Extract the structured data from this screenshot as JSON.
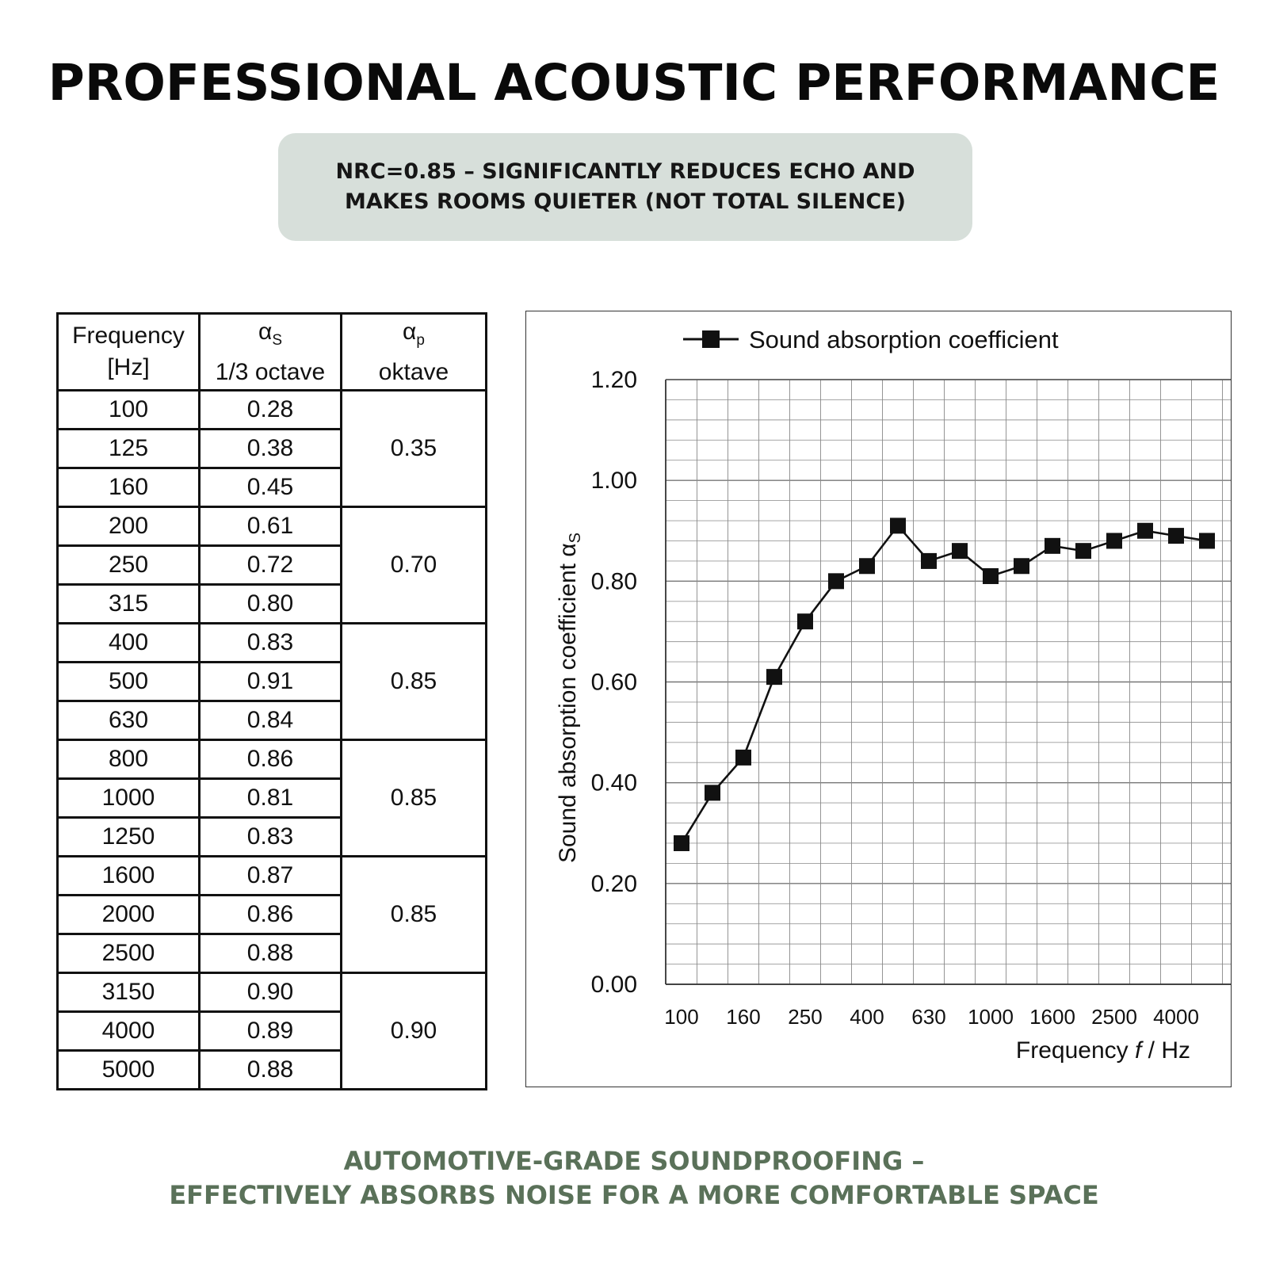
{
  "header": {
    "title": "PROFESSIONAL ACOUSTIC PERFORMANCE",
    "subtitle_line1": "NRC=0.85 – SIGNIFICANTLY REDUCES ECHO AND",
    "subtitle_line2": "MAKES ROOMS QUIETER (NOT TOTAL SILENCE)"
  },
  "table": {
    "col1_line1": "Frequency",
    "col1_line2": "[Hz]",
    "col2_symbol": "α",
    "col2_sub": "S",
    "col2_line2": "1/3 octave",
    "col3_symbol": "α",
    "col3_sub": "p",
    "col3_line2": "oktave",
    "rows": [
      {
        "f": "100",
        "a": "0.28"
      },
      {
        "f": "125",
        "a": "0.38"
      },
      {
        "f": "160",
        "a": "0.45"
      },
      {
        "f": "200",
        "a": "0.61"
      },
      {
        "f": "250",
        "a": "0.72"
      },
      {
        "f": "315",
        "a": "0.80"
      },
      {
        "f": "400",
        "a": "0.83"
      },
      {
        "f": "500",
        "a": "0.91"
      },
      {
        "f": "630",
        "a": "0.84"
      },
      {
        "f": "800",
        "a": "0.86"
      },
      {
        "f": "1000",
        "a": "0.81"
      },
      {
        "f": "1250",
        "a": "0.83"
      },
      {
        "f": "1600",
        "a": "0.87"
      },
      {
        "f": "2000",
        "a": "0.86"
      },
      {
        "f": "2500",
        "a": "0.88"
      },
      {
        "f": "3150",
        "a": "0.90"
      },
      {
        "f": "4000",
        "a": "0.89"
      },
      {
        "f": "5000",
        "a": "0.88"
      }
    ],
    "octave_values": [
      "0.35",
      "0.70",
      "0.85",
      "0.85",
      "0.85",
      "0.90"
    ]
  },
  "chart_data": {
    "type": "line",
    "legend": "Sound absorption coefficient",
    "legend_position": "top",
    "ylabel": "Sound absorption coefficient α",
    "ylabel_sub": "S",
    "xlabel_prefix": "Frequency ",
    "xlabel_var": "f",
    "xlabel_suffix": " / Hz",
    "x": [
      100,
      125,
      160,
      200,
      250,
      315,
      400,
      500,
      630,
      800,
      1000,
      1250,
      1600,
      2000,
      2500,
      3150,
      4000,
      5000
    ],
    "x_tick_labels": [
      "100",
      "160",
      "250",
      "400",
      "630",
      "1000",
      "1600",
      "2500",
      "4000"
    ],
    "y_tick_labels": [
      "0.00",
      "0.20",
      "0.40",
      "0.60",
      "0.80",
      "1.00",
      "1.20"
    ],
    "ylim": [
      0,
      1.2
    ],
    "y_ticks": [
      0,
      0.2,
      0.4,
      0.6,
      0.8,
      1.0,
      1.2
    ],
    "grid": true,
    "series": [
      {
        "name": "Sound absorption coefficient",
        "values": [
          0.28,
          0.38,
          0.45,
          0.61,
          0.72,
          0.8,
          0.83,
          0.91,
          0.84,
          0.86,
          0.81,
          0.83,
          0.87,
          0.86,
          0.88,
          0.9,
          0.89,
          0.88
        ]
      }
    ]
  },
  "footer": {
    "line1": "AUTOMOTIVE-GRADE SOUNDPROOFING –",
    "line2": "EFFECTIVELY ABSORBS NOISE FOR A MORE COMFORTABLE SPACE"
  }
}
